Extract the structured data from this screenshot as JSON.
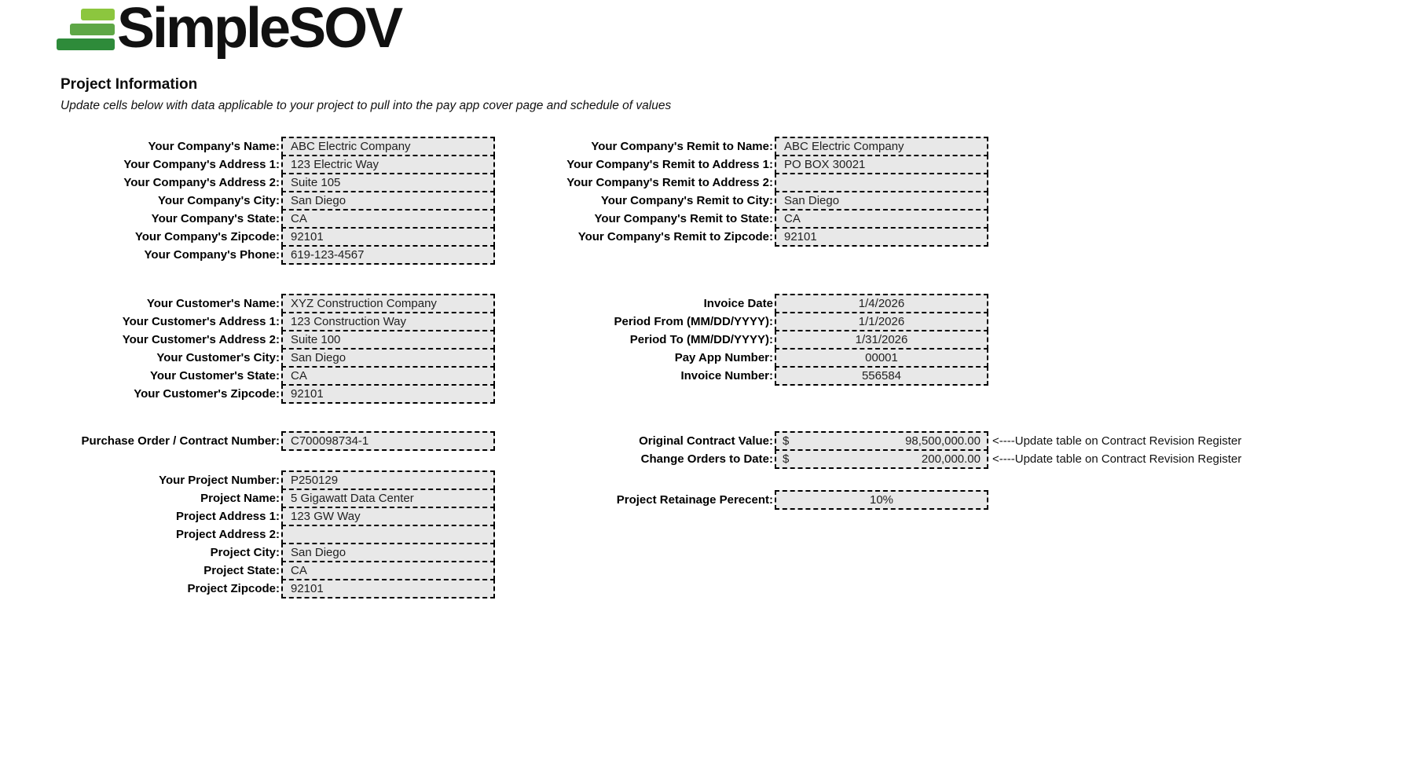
{
  "logo": {
    "text": "SimpleSOV",
    "bar_colors": [
      "#8cc63e",
      "#5ea746",
      "#2e8b3a"
    ]
  },
  "header": {
    "title": "Project Information",
    "subtitle": "Update cells below with data applicable to your project to pull into the pay app cover page and schedule of values"
  },
  "company": {
    "fields": [
      {
        "label": "Your Company's Name:",
        "value": "ABC Electric Company"
      },
      {
        "label": "Your Company's Address 1:",
        "value": "123 Electric Way"
      },
      {
        "label": "Your Company's Address 2:",
        "value": "Suite 105"
      },
      {
        "label": "Your Company's City:",
        "value": "San Diego"
      },
      {
        "label": "Your Company's State:",
        "value": "CA"
      },
      {
        "label": "Your Company's Zipcode:",
        "value": "92101"
      },
      {
        "label": "Your Company's Phone:",
        "value": "619-123-4567"
      }
    ]
  },
  "remit": {
    "fields": [
      {
        "label": "Your Company's Remit to Name:",
        "value": "ABC Electric Company"
      },
      {
        "label": "Your Company's Remit to Address 1:",
        "value": "PO BOX 30021"
      },
      {
        "label": "Your Company's Remit to Address 2:",
        "value": ""
      },
      {
        "label": "Your Company's Remit to City:",
        "value": "San Diego"
      },
      {
        "label": "Your Company's Remit to State:",
        "value": "CA"
      },
      {
        "label": "Your Company's Remit to Zipcode:",
        "value": "92101"
      }
    ]
  },
  "customer": {
    "fields": [
      {
        "label": "Your Customer's Name:",
        "value": "XYZ Construction Company"
      },
      {
        "label": "Your Customer's Address 1:",
        "value": "123 Construction Way"
      },
      {
        "label": "Your Customer's Address 2:",
        "value": "Suite 100"
      },
      {
        "label": "Your Customer's City:",
        "value": "San Diego"
      },
      {
        "label": "Your Customer's State:",
        "value": "CA"
      },
      {
        "label": "Your Customer's Zipcode:",
        "value": "92101"
      }
    ]
  },
  "invoice": {
    "fields": [
      {
        "label": "Invoice Date",
        "value": "1/4/2026"
      },
      {
        "label": "Period From (MM/DD/YYYY):",
        "value": "1/1/2026"
      },
      {
        "label": "Period To (MM/DD/YYYY):",
        "value": "1/31/2026"
      },
      {
        "label": "Pay App Number:",
        "value": "00001"
      },
      {
        "label": "Invoice Number:",
        "value": "556584"
      }
    ]
  },
  "purchase_order": {
    "label": "Purchase Order / Contract Number:",
    "value": "C700098734-1"
  },
  "contract": {
    "rows": [
      {
        "label": "Original Contract Value:",
        "currency": "$",
        "value": "98,500,000.00",
        "note": "<----Update table on Contract Revision Register"
      },
      {
        "label": "Change Orders to Date:",
        "currency": "$",
        "value": "200,000.00",
        "note": "<----Update table on Contract Revision Register"
      }
    ]
  },
  "project": {
    "fields": [
      {
        "label": "Your Project Number:",
        "value": "P250129"
      },
      {
        "label": "Project Name:",
        "value": "5 Gigawatt Data Center"
      },
      {
        "label": "Project Address 1:",
        "value": "123 GW Way"
      },
      {
        "label": "Project Address 2:",
        "value": ""
      },
      {
        "label": "Project City:",
        "value": "San Diego"
      },
      {
        "label": "Project State:",
        "value": "CA"
      },
      {
        "label": "Project Zipcode:",
        "value": "92101"
      }
    ]
  },
  "retainage": {
    "label": "Project Retainage Perecent:",
    "value": "10%"
  }
}
